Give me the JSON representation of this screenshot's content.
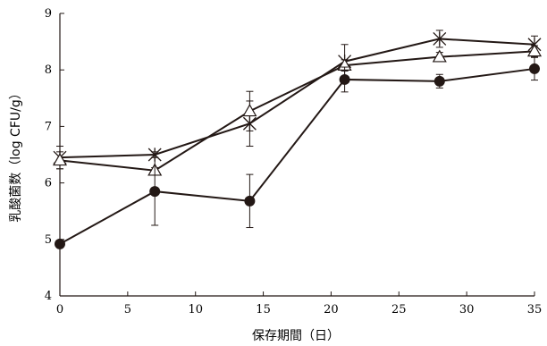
{
  "chart_data": {
    "type": "line",
    "title": "",
    "xlabel": "保存期間（日）",
    "ylabel": "乳酸菌数（log CFU/g）",
    "xlim": [
      0,
      35
    ],
    "ylim": [
      4,
      9
    ],
    "x_ticks": [
      0,
      5,
      10,
      15,
      20,
      25,
      30,
      35
    ],
    "y_ticks": [
      4,
      5,
      6,
      7,
      8,
      9
    ],
    "x_tick_labels": [
      "0",
      "5",
      "10",
      "15",
      "20",
      "25",
      "30",
      "35"
    ],
    "y_tick_labels": [
      "4",
      "5",
      "6",
      "7",
      "8",
      "9"
    ],
    "grid": false,
    "legend": "none",
    "x": [
      0,
      7,
      14,
      21,
      28,
      35
    ],
    "series": [
      {
        "marker": "asterisk",
        "color": "#231815",
        "values": [
          6.45,
          6.5,
          7.05,
          8.15,
          8.55,
          8.45
        ],
        "errors": [
          0.2,
          0.05,
          0.4,
          0.3,
          0.15,
          0.15
        ]
      },
      {
        "marker": "open-triangle",
        "color": "#231815",
        "values": [
          6.4,
          6.22,
          7.27,
          8.08,
          8.23,
          8.33
        ],
        "errors": [
          0.15,
          0.05,
          0.35,
          0.1,
          0.08,
          0.1
        ]
      },
      {
        "marker": "filled-circle",
        "color": "#231815",
        "values": [
          4.92,
          5.85,
          5.68,
          7.83,
          7.8,
          8.02
        ],
        "errors": [
          0.05,
          0.6,
          0.47,
          0.22,
          0.12,
          0.2
        ]
      }
    ]
  }
}
